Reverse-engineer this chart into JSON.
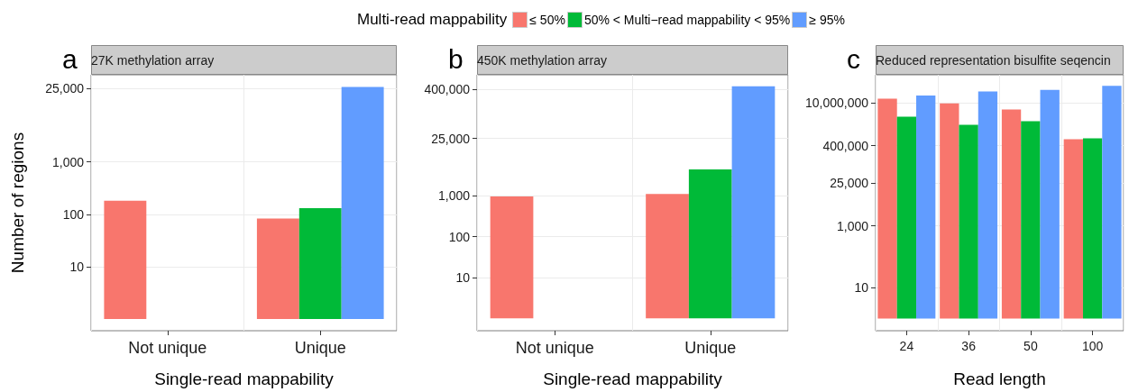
{
  "chart_data": [
    {
      "type": "bar",
      "title": "27K methylation array",
      "xlabel": "Single-read mappability",
      "ylabel": "Number of regions",
      "legend_title": "Multi-read mappability",
      "legend": "top",
      "log": "y",
      "grid": true,
      "annotations": [
        "a"
      ],
      "categories": [
        "Not unique",
        "Unique"
      ],
      "ylim": [
        0.6,
        46000
      ],
      "yticks": [
        {
          "value": 10,
          "label": "10"
        },
        {
          "value": 100,
          "label": "100"
        },
        {
          "value": 1000,
          "label": "1,000"
        },
        {
          "value": 25000,
          "label": "25,000"
        }
      ],
      "series": [
        {
          "name": "≤ 50%",
          "color": "#f8766d",
          "values": [
            180,
            82
          ],
          "base": [
            1,
            1
          ]
        },
        {
          "name": "50% < Multi−read mappability < 95%",
          "color": "#00ba38",
          "values": [
            null,
            130
          ],
          "base": [
            null,
            1
          ]
        },
        {
          "name": "≥ 95%",
          "color": "#619cff",
          "values": [
            null,
            27000
          ],
          "base": [
            null,
            1
          ]
        }
      ]
    },
    {
      "type": "bar",
      "title": "450K methylation array",
      "xlabel": "Single-read mappability",
      "log": "y",
      "grid": true,
      "annotations": [
        "b"
      ],
      "categories": [
        "Not unique",
        "Unique"
      ],
      "ylim": [
        0.5,
        900000
      ],
      "yticks": [
        {
          "value": 10,
          "label": "10"
        },
        {
          "value": 100,
          "label": "100"
        },
        {
          "value": 1000,
          "label": "1,000"
        },
        {
          "value": 25000,
          "label": "25,000"
        },
        {
          "value": 400000,
          "label": "400,000"
        }
      ],
      "series": [
        {
          "color": "#f8766d",
          "values": [
            950,
            1100
          ],
          "base": [
            1,
            1
          ]
        },
        {
          "color": "#00ba38",
          "values": [
            null,
            4400
          ],
          "base": [
            null,
            1
          ]
        },
        {
          "color": "#619cff",
          "values": [
            null,
            470000
          ],
          "base": [
            null,
            1
          ]
        }
      ]
    },
    {
      "type": "bar",
      "title": "Reduced representation bisulfite seqencin",
      "xlabel": "Read length",
      "log": "y",
      "grid": true,
      "annotations": [
        "c"
      ],
      "categories": [
        "24",
        "36",
        "50",
        "100"
      ],
      "ylim": [
        0.4,
        80000000
      ],
      "yticks": [
        {
          "value": 10,
          "label": "10"
        },
        {
          "value": 1000,
          "label": "1,000"
        },
        {
          "value": 25000,
          "label": "25,000"
        },
        {
          "value": 400000,
          "label": "400,000"
        },
        {
          "value": 10000000,
          "label": "10,000,000"
        }
      ],
      "series": [
        {
          "color": "#f8766d",
          "values": [
            13500000,
            9500000,
            6000000,
            650000
          ],
          "base": [
            1,
            1,
            1,
            1
          ]
        },
        {
          "color": "#00ba38",
          "values": [
            3500000,
            1900000,
            2500000,
            690000
          ],
          "base": [
            1,
            1,
            1,
            1
          ]
        },
        {
          "color": "#619cff",
          "values": [
            17000000,
            23000000,
            26000000,
            35000000
          ],
          "base": [
            1,
            1,
            1,
            1
          ]
        }
      ]
    }
  ]
}
